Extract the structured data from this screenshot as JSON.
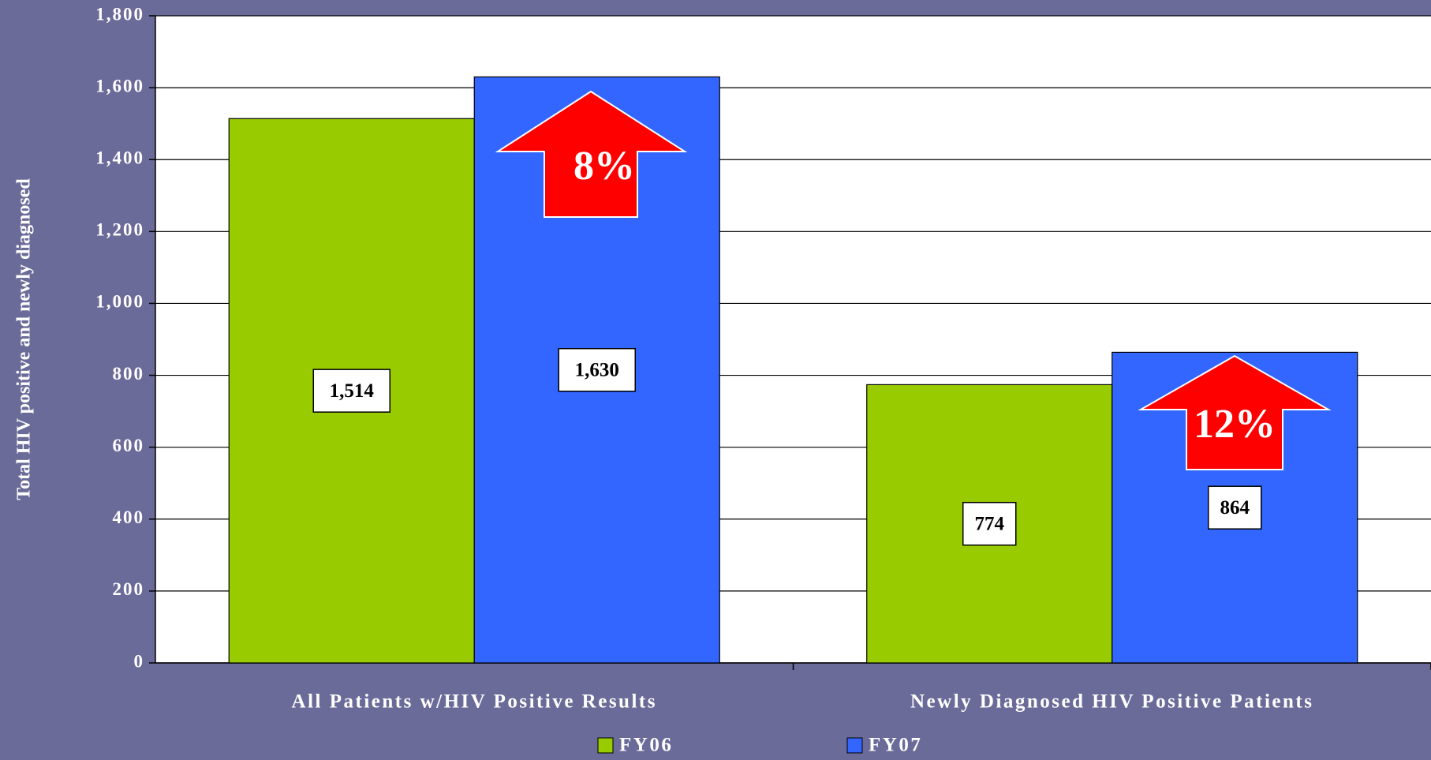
{
  "chart_data": {
    "type": "bar",
    "y_label": "Total HIV positive and newly diagnosed",
    "categories": [
      "All Patients w/HIV Positive Results",
      "Newly Diagnosed HIV Positive Patients"
    ],
    "series": [
      {
        "name": "FY06",
        "color": "#99cc00",
        "values": [
          1514,
          774
        ],
        "value_labels": [
          "1,514",
          "774"
        ]
      },
      {
        "name": "FY07",
        "color": "#3366ff",
        "values": [
          1630,
          864
        ],
        "value_labels": [
          "1,630",
          "864"
        ]
      }
    ],
    "annotations": [
      "8%",
      "12%"
    ],
    "ylim": [
      0,
      1800
    ],
    "yticks": [
      0,
      200,
      400,
      600,
      800,
      {
        "value": 1000,
        "label": "1,000"
      },
      {
        "value": 1200,
        "label": "1,200"
      },
      {
        "value": 1400,
        "label": "1,400"
      },
      {
        "value": 1600,
        "label": "1,600"
      },
      {
        "value": 1800,
        "label": "1,800"
      }
    ],
    "grid": true
  }
}
